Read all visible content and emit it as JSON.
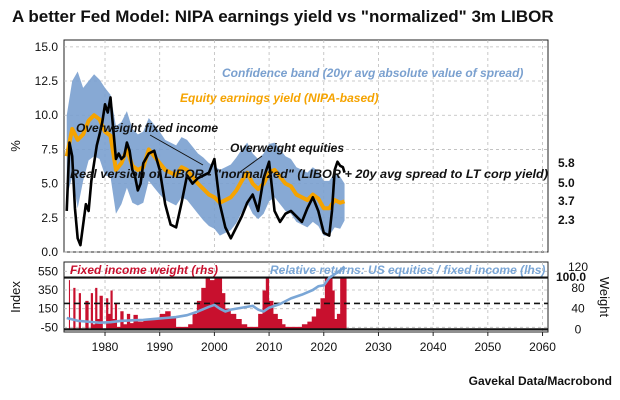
{
  "title": "A better Fed Model: NIPA earnings yield vs \"normalized\" 3m LIBOR",
  "source": "Gavekal Data/Macrobond",
  "colors": {
    "band": "#7aa0cf",
    "equity": "#f5a300",
    "libor": "#000000",
    "weight": "#c8102e",
    "relative": "#7aa6d6",
    "last_value_band": "#6f93c9"
  },
  "chart_data": [
    {
      "type": "area",
      "panel": "top",
      "ylabel": "%",
      "ylim": [
        0,
        15.5
      ],
      "yticks": [
        0.0,
        2.5,
        5.0,
        7.5,
        10.0,
        12.5,
        15.0
      ],
      "xlim": [
        1972.5,
        2061
      ],
      "xticks": [
        1980,
        1990,
        2000,
        2010,
        2020,
        2030,
        2040,
        2050,
        2060
      ],
      "grid": true,
      "annotations": {
        "band_label": "Confidence band (20yr avg absolute value of spread)",
        "equity_label": "Equity earnings yield (NIPA-based)",
        "overweight_fixed": "Overweight fixed income",
        "overweight_equities": "Overweight equities",
        "libor_label": "Real version of LIBOR - \"normalized\" (LIBOR + 20y avg spread to LT corp yield)"
      },
      "last_values": [
        "5.8",
        "5.0",
        "3.7",
        "2.3"
      ],
      "series": [
        {
          "name": "Equity earnings yield (NIPA-based)",
          "kind": "line",
          "x": [
            1973,
            1974,
            1975,
            1976,
            1977,
            1978,
            1979,
            1980,
            1981,
            1982,
            1983,
            1984,
            1985,
            1986,
            1987,
            1988,
            1989,
            1990,
            1991,
            1992,
            1993,
            1994,
            1995,
            1996,
            1997,
            1998,
            1999,
            2000,
            2001,
            2002,
            2003,
            2004,
            2005,
            2006,
            2007,
            2008,
            2009,
            2010,
            2011,
            2012,
            2013,
            2014,
            2015,
            2016,
            2017,
            2018,
            2019,
            2020,
            2021,
            2022,
            2023,
            2023.8
          ],
          "values": [
            7.0,
            9.0,
            8.2,
            8.6,
            9.6,
            10.0,
            9.7,
            8.8,
            8.5,
            6.0,
            6.5,
            7.5,
            6.3,
            6.0,
            6.2,
            7.5,
            7.0,
            6.5,
            6.0,
            5.8,
            5.6,
            6.2,
            6.0,
            5.5,
            5.0,
            4.6,
            4.2,
            4.0,
            3.6,
            3.8,
            4.0,
            4.5,
            5.2,
            5.8,
            5.0,
            4.6,
            5.0,
            5.8,
            6.0,
            5.5,
            5.0,
            4.8,
            4.2,
            4.0,
            3.8,
            4.2,
            3.9,
            3.2,
            3.2,
            3.8,
            3.6,
            3.7
          ]
        },
        {
          "name": "Confidence band upper",
          "kind": "band-upper",
          "x": [
            1973,
            1974,
            1975,
            1976,
            1977,
            1978,
            1979,
            1980,
            1981,
            1982,
            1983,
            1984,
            1985,
            1986,
            1987,
            1988,
            1989,
            1990,
            1991,
            1992,
            1993,
            1994,
            1995,
            1996,
            1997,
            1998,
            1999,
            2000,
            2001,
            2002,
            2003,
            2004,
            2005,
            2006,
            2007,
            2008,
            2009,
            2010,
            2011,
            2012,
            2013,
            2014,
            2015,
            2016,
            2017,
            2018,
            2019,
            2020,
            2021,
            2022,
            2023,
            2023.8
          ],
          "values": [
            10.0,
            12.5,
            13.2,
            12.0,
            12.5,
            13.0,
            12.6,
            12.0,
            11.5,
            9.2,
            9.5,
            10.3,
            9.0,
            8.6,
            8.8,
            9.8,
            9.3,
            8.8,
            8.2,
            8.0,
            7.8,
            8.4,
            8.2,
            7.7,
            7.2,
            6.9,
            6.5,
            6.3,
            6.0,
            6.2,
            6.4,
            6.9,
            7.5,
            8.0,
            7.2,
            6.8,
            7.2,
            7.9,
            8.0,
            7.5,
            7.0,
            6.8,
            6.2,
            6.0,
            5.8,
            6.2,
            5.9,
            5.2,
            5.2,
            5.8,
            5.5,
            5.0
          ]
        },
        {
          "name": "Confidence band lower",
          "kind": "band-lower",
          "x": [
            1973,
            1974,
            1975,
            1976,
            1977,
            1978,
            1979,
            1980,
            1981,
            1982,
            1983,
            1984,
            1985,
            1986,
            1987,
            1988,
            1989,
            1990,
            1991,
            1992,
            1993,
            1994,
            1995,
            1996,
            1997,
            1998,
            1999,
            2000,
            2001,
            2002,
            2003,
            2004,
            2005,
            2006,
            2007,
            2008,
            2009,
            2010,
            2011,
            2012,
            2013,
            2014,
            2015,
            2016,
            2017,
            2018,
            2019,
            2020,
            2021,
            2022,
            2023,
            2023.8
          ],
          "values": [
            4.0,
            5.5,
            3.2,
            5.2,
            6.7,
            7.0,
            6.8,
            5.6,
            5.5,
            2.8,
            3.5,
            4.7,
            3.6,
            3.4,
            3.6,
            5.2,
            4.7,
            4.2,
            3.8,
            3.6,
            3.4,
            4.0,
            3.8,
            3.3,
            2.8,
            2.3,
            1.9,
            1.7,
            1.2,
            1.4,
            1.6,
            2.1,
            2.9,
            3.6,
            2.8,
            2.4,
            2.8,
            3.7,
            4.0,
            3.5,
            3.0,
            2.8,
            2.2,
            2.0,
            1.8,
            2.2,
            1.9,
            1.2,
            1.2,
            1.8,
            1.7,
            2.3
          ]
        },
        {
          "name": "Real version of LIBOR - \"normalized\" (LIBOR + 20y avg spread to LT corp yield)",
          "kind": "line",
          "x": [
            1973,
            1973.5,
            1974,
            1974.5,
            1975,
            1975.5,
            1976,
            1976.5,
            1977,
            1977.5,
            1978,
            1978.5,
            1979,
            1979.5,
            1980,
            1980.5,
            1981,
            1981.5,
            1982,
            1982.5,
            1983,
            1983.5,
            1984,
            1984.5,
            1985,
            1985.5,
            1986,
            1986.5,
            1987,
            1988,
            1989,
            1990,
            1991,
            1992,
            1993,
            1994,
            1995,
            1996,
            1997,
            1998,
            1999,
            2000,
            2001,
            2002,
            2003,
            2004,
            2005,
            2006,
            2007,
            2008,
            2009,
            2010,
            2011,
            2012,
            2013,
            2014,
            2015,
            2016,
            2017,
            2018,
            2019,
            2020,
            2021,
            2021.5,
            2022,
            2022.5,
            2023,
            2023.5,
            2023.8
          ],
          "values": [
            3.0,
            8.0,
            7.0,
            3.2,
            1.0,
            0.5,
            2.0,
            3.5,
            3.0,
            5.2,
            6.5,
            7.8,
            8.6,
            9.5,
            10.8,
            10.2,
            11.3,
            9.0,
            6.8,
            7.2,
            6.8,
            7.0,
            8.0,
            7.4,
            6.0,
            5.5,
            4.5,
            5.0,
            6.5,
            7.2,
            7.4,
            6.0,
            3.5,
            2.0,
            1.8,
            3.6,
            5.6,
            5.0,
            5.4,
            5.6,
            5.8,
            6.8,
            3.5,
            1.8,
            1.0,
            1.8,
            2.6,
            3.6,
            4.2,
            3.0,
            5.4,
            6.6,
            3.0,
            2.2,
            2.8,
            3.0,
            2.6,
            2.2,
            3.2,
            4.0,
            3.0,
            1.4,
            1.2,
            3.0,
            6.0,
            6.6,
            6.3,
            6.2,
            5.8
          ]
        }
      ]
    },
    {
      "type": "area",
      "panel": "bottom",
      "ylabel_left": "Index",
      "ylabel_right": "Weight",
      "ylim_left": [
        -100,
        650
      ],
      "yticks_left": [
        -50,
        150,
        350,
        550
      ],
      "ylim_right": [
        -5,
        130
      ],
      "yticks_right": [
        0,
        40,
        80,
        120
      ],
      "xlim": [
        1972.5,
        2061
      ],
      "xticks": [
        1980,
        1990,
        2000,
        2010,
        2020,
        2030,
        2040,
        2050,
        2060
      ],
      "grid": true,
      "annotations": {
        "weight_label": "Fixed income weight (rhs)",
        "relative_label": "Relative returns: US equities / fixed income (lhs)"
      },
      "last_value": "100.0",
      "reference_lines": [
        {
          "axis": "right",
          "value": 100,
          "style": "solid"
        },
        {
          "axis": "right",
          "value": 50,
          "style": "dashed"
        },
        {
          "axis": "right",
          "value": 0,
          "style": "solid"
        }
      ],
      "series": [
        {
          "name": "Fixed income weight (rhs)",
          "kind": "step-area",
          "x": [
            1973,
            1973.4,
            1973.6,
            1974.2,
            1974.6,
            1975.2,
            1975.6,
            1976.4,
            1977.0,
            1977.4,
            1977.8,
            1978.2,
            1978.6,
            1979.0,
            1979.6,
            1980.2,
            1980.6,
            1981.0,
            1981.4,
            1981.8,
            1982.2,
            1982.8,
            1983.4,
            1984.0,
            1984.6,
            1985.2,
            1986.0,
            1987.0,
            1988.0,
            1989.0,
            1990.0,
            1991.0,
            1992.0,
            1993.0,
            1994.0,
            1994.6,
            1995.2,
            1996.0,
            1996.8,
            1997.6,
            1998.4,
            1999.2,
            2000.0,
            2000.8,
            2001.4,
            2002.0,
            2003.0,
            2004.0,
            2005.0,
            2006.0,
            2007.0,
            2008.0,
            2008.8,
            2009.4,
            2010.0,
            2010.8,
            2011.6,
            2012.4,
            2013.0,
            2014.0,
            2015.0,
            2016.0,
            2017.0,
            2017.8,
            2018.6,
            2019.4,
            2020.2,
            2021.0,
            2021.6,
            2022.0,
            2022.4,
            2023.0,
            2023.8
          ],
          "values": [
            0,
            95,
            0,
            80,
            0,
            70,
            0,
            55,
            0,
            70,
            10,
            80,
            20,
            65,
            0,
            60,
            30,
            75,
            20,
            50,
            5,
            35,
            10,
            30,
            12,
            28,
            15,
            20,
            20,
            22,
            30,
            35,
            25,
            5,
            5,
            5,
            10,
            30,
            55,
            80,
            100,
            95,
            100,
            100,
            70,
            40,
            30,
            20,
            10,
            5,
            5,
            30,
            75,
            100,
            55,
            30,
            20,
            10,
            5,
            5,
            5,
            10,
            15,
            25,
            40,
            60,
            100,
            100,
            75,
            20,
            30,
            100,
            100
          ]
        },
        {
          "name": "Relative returns: US equities / fixed income (lhs)",
          "kind": "line",
          "x": [
            1973,
            1975,
            1977,
            1979,
            1981,
            1983,
            1985,
            1987,
            1989,
            1991,
            1993,
            1995,
            1997,
            1999,
            2000,
            2001,
            2002,
            2003,
            2005,
            2007,
            2008,
            2009,
            2010,
            2012,
            2014,
            2016,
            2018,
            2019,
            2020,
            2021,
            2022,
            2023,
            2023.8
          ],
          "values": [
            50,
            20,
            10,
            0,
            5,
            20,
            25,
            30,
            40,
            50,
            60,
            80,
            120,
            170,
            190,
            150,
            120,
            140,
            160,
            180,
            140,
            120,
            160,
            200,
            260,
            300,
            350,
            390,
            400,
            480,
            520,
            560,
            600
          ]
        }
      ]
    }
  ]
}
